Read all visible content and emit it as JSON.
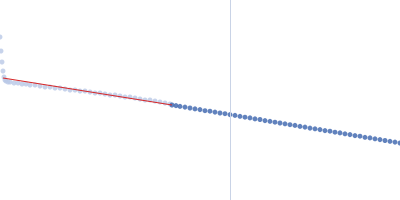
{
  "chart_data": {
    "type": "scatter",
    "tick_labels": false,
    "grid": false,
    "xlim": [
      0,
      400
    ],
    "ylim": [
      0,
      200
    ],
    "vline": 230,
    "series": [
      {
        "type": "scatter",
        "color": "#b9c8e6",
        "marker": "circle",
        "x": [
          0,
          1,
          2,
          3,
          4,
          5,
          6,
          8,
          10,
          14,
          18,
          22,
          26,
          30,
          35,
          40,
          45,
          50,
          55,
          60,
          65,
          70,
          75,
          80,
          85,
          90,
          95,
          100,
          105,
          110,
          115,
          120,
          125,
          130,
          135,
          140,
          145,
          150,
          155,
          160,
          165,
          170
        ],
        "values": [
          163,
          149,
          138,
          129,
          123,
          120,
          119,
          118,
          118,
          117,
          117,
          116,
          116,
          115,
          115,
          114,
          113,
          113,
          112,
          112,
          111,
          110,
          110,
          109,
          109,
          108,
          107,
          107,
          106,
          105,
          105,
          104,
          103,
          103,
          102,
          101,
          100,
          100,
          99,
          98,
          97,
          96
        ]
      },
      {
        "type": "scatter",
        "color": "#3a63ad",
        "marker": "circle",
        "x": [
          172,
          176,
          180,
          185,
          190,
          195,
          200,
          205,
          210,
          215,
          220,
          225,
          230,
          235,
          240,
          245,
          250,
          255,
          260,
          265,
          270,
          275,
          280,
          285,
          290,
          295,
          300,
          305,
          310,
          315,
          320,
          325,
          330,
          335,
          340,
          345,
          350,
          355,
          360,
          365,
          370,
          375,
          380,
          385,
          390,
          395,
          400
        ],
        "values": [
          95,
          94.4,
          93.6,
          92.9,
          92,
          91.1,
          90.4,
          89.3,
          88.8,
          87.9,
          87,
          86.3,
          85.4,
          84.6,
          83.7,
          82.8,
          82.1,
          81.1,
          80.5,
          79.4,
          78.7,
          77.8,
          77,
          76.2,
          75.3,
          74.6,
          73.6,
          72.9,
          71.9,
          71.2,
          70.4,
          69.4,
          68.8,
          67.8,
          67.1,
          66.2,
          65.4,
          64.4,
          63.8,
          62.7,
          62.1,
          61.2,
          60.4,
          59.5,
          58.7,
          57.9,
          57
        ]
      },
      {
        "type": "line",
        "color": "#d62728",
        "line_style": "solid",
        "x": [
          3,
          172
        ],
        "values": [
          122,
          95
        ]
      }
    ]
  }
}
